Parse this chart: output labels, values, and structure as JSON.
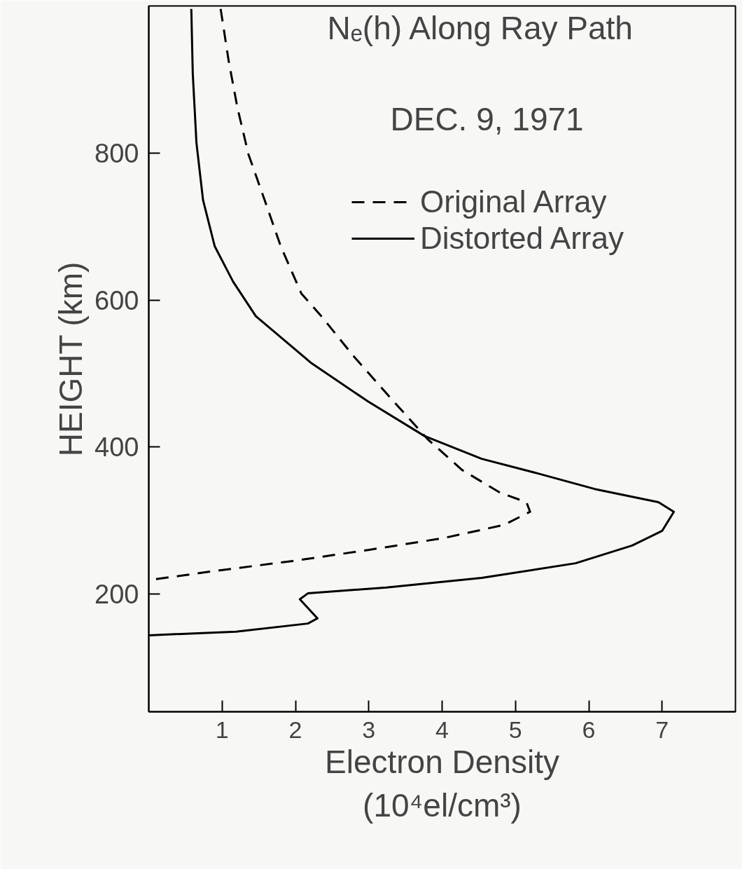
{
  "chart_data": {
    "type": "line",
    "title": "Nₑ(h) Along Ray Path",
    "annotations": [
      "DEC. 9, 1971"
    ],
    "xlabel": "Electron Density\n(10⁴el/cm³)",
    "ylabel": "HEIGHT (km)",
    "xlim": [
      0,
      8
    ],
    "ylim": [
      40,
      1000
    ],
    "xticks": [
      1,
      2,
      3,
      4,
      5,
      6,
      7
    ],
    "yticks": [
      200,
      400,
      600,
      800
    ],
    "grid": false,
    "legend": "top right",
    "marker": "none",
    "series": [
      {
        "name": "Original Array",
        "color": "#000000",
        "line_style": "dashed",
        "x": [
          0.98,
          1.09,
          1.21,
          1.36,
          1.58,
          1.8,
          2.08,
          2.37,
          2.79,
          3.25,
          3.81,
          4.27,
          4.79,
          5.15,
          5.2,
          4.84,
          4.01,
          2.99,
          1.96,
          0.94,
          0.0
        ],
        "values": [
          996,
          925,
          861,
          798,
          736,
          673,
          609,
          576,
          524,
          472,
          410,
          369,
          338,
          325,
          312,
          294,
          276,
          260,
          245,
          232,
          219
        ]
      },
      {
        "name": "Distorted Array",
        "color": "#000000",
        "line_style": "solid",
        "x": [
          0.58,
          0.6,
          0.65,
          0.74,
          0.9,
          1.15,
          1.46,
          2.22,
          2.99,
          3.76,
          4.54,
          5.31,
          6.08,
          6.95,
          7.16,
          7.0,
          6.59,
          5.82,
          4.54,
          3.24,
          2.17,
          2.06,
          2.3,
          2.17,
          1.19,
          0.0
        ],
        "values": [
          996,
          908,
          814,
          736,
          673,
          625,
          578,
          514,
          462,
          415,
          384,
          364,
          343,
          325,
          312,
          286,
          266,
          242,
          222,
          209,
          201,
          193,
          167,
          160,
          149,
          144
        ]
      }
    ]
  }
}
